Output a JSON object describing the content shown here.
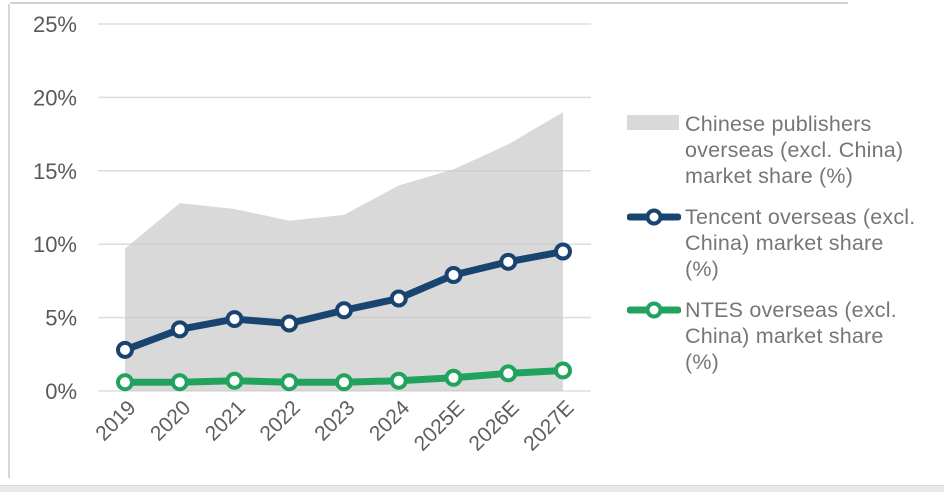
{
  "chart_data": {
    "type": "line",
    "title": "",
    "xlabel": "",
    "ylabel": "",
    "categories": [
      "2019",
      "2020",
      "2021",
      "2022",
      "2023",
      "2024",
      "2025E",
      "2026E",
      "2027E"
    ],
    "series": [
      {
        "name": "Chinese publishers overseas (excl. China) market share (%)",
        "style": "area",
        "color": "#d9d9d9",
        "values": [
          9.7,
          12.8,
          12.4,
          11.6,
          12.0,
          14.0,
          15.1,
          16.8,
          19.0
        ]
      },
      {
        "name": "Tencent overseas (excl. China) market share (%)",
        "style": "line",
        "color": "#1a4470",
        "values": [
          2.8,
          4.2,
          4.9,
          4.6,
          5.5,
          6.3,
          7.9,
          8.8,
          9.5
        ]
      },
      {
        "name": "NTES overseas (excl. China) market share (%)",
        "style": "line",
        "color": "#21a35e",
        "values": [
          0.6,
          0.6,
          0.7,
          0.6,
          0.6,
          0.7,
          0.9,
          1.2,
          1.4
        ]
      }
    ],
    "ylim": [
      0,
      25
    ],
    "yticks": [
      0,
      5,
      10,
      15,
      20,
      25
    ],
    "ytick_labels": [
      "0%",
      "5%",
      "10%",
      "15%",
      "20%",
      "25%"
    ],
    "grid": true,
    "xlabel_rotation_deg": -45,
    "legend_position": "right"
  },
  "legend": {
    "items": [
      {
        "lines": [
          "Chinese publishers",
          "overseas (excl. China)",
          "market share (%)"
        ]
      },
      {
        "lines": [
          "Tencent overseas (excl.",
          "China) market share",
          "(%)"
        ]
      },
      {
        "lines": [
          "NTES overseas (excl.",
          "China) market share",
          "(%)"
        ]
      }
    ]
  }
}
